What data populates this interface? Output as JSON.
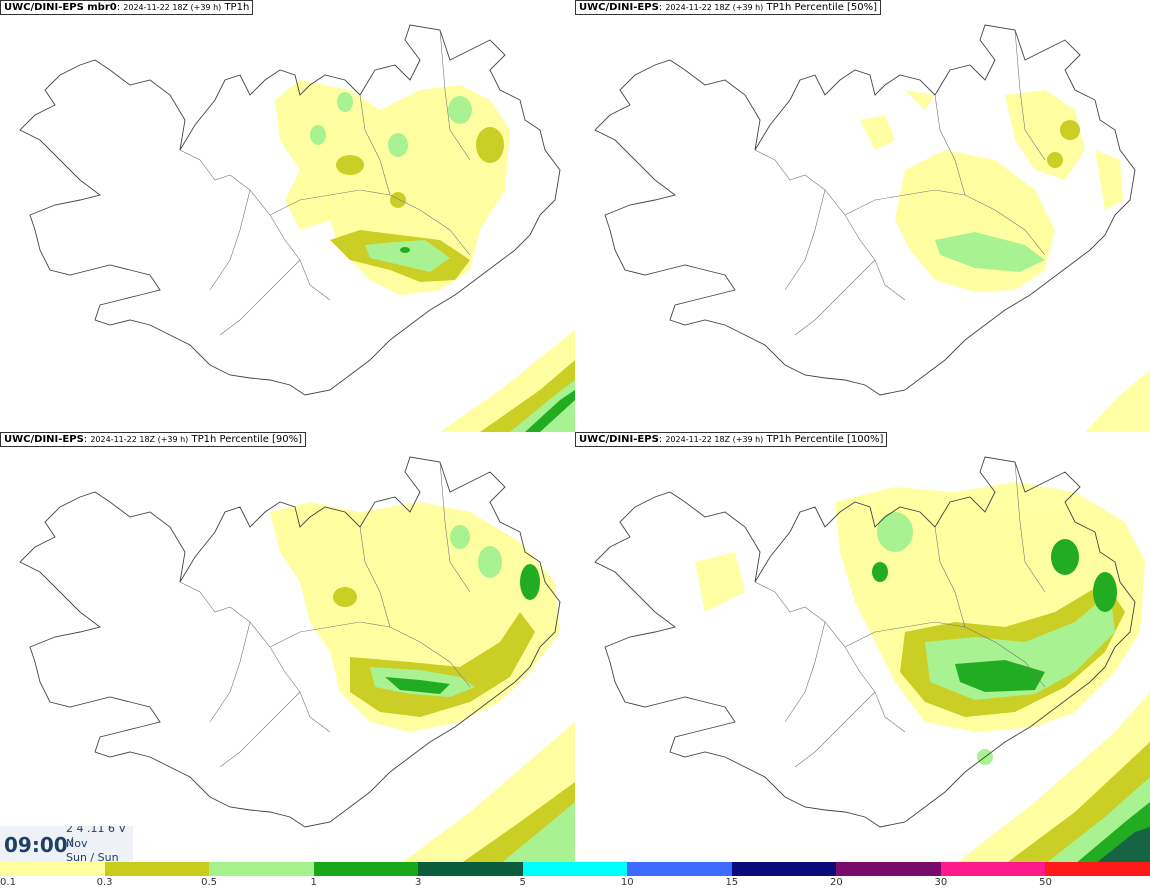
{
  "panels": [
    {
      "model": "UWC/DINI-EPS mbr0",
      "sep": ": ",
      "date": "2024-11-22 18Z (+39 h)",
      "field": "TP1h"
    },
    {
      "model": "UWC/DINI-EPS",
      "sep": ": ",
      "date": "2024-11-22 18Z (+39 h)",
      "field": "TP1h Percentile [50%]"
    },
    {
      "model": "UWC/DINI-EPS",
      "sep": ": ",
      "date": "2024-11-22 18Z (+39 h)",
      "field": "TP1h Percentile [90%]"
    },
    {
      "model": "UWC/DINI-EPS",
      "sep": ": ",
      "date": "2024-11-22 18Z (+39 h)",
      "field": "TP1h Percentile [100%]"
    }
  ],
  "valid_time": {
    "time": "09:00",
    "line1": "2 4 .11 6 V ./",
    "line2": "Nov",
    "line3": "Sun / Sun"
  },
  "legend": {
    "colors": [
      "#ffff9e",
      "#c8cc1a",
      "#a5f28c",
      "#17a817",
      "#0b5c3c",
      "#00ffff",
      "#3d6bff",
      "#0a0a7a",
      "#7a0a6b",
      "#ff1a8c",
      "#ff1a1a"
    ],
    "ticks": [
      "0.1",
      "0.3",
      "0.5",
      "1",
      "3",
      "5",
      "10",
      "15",
      "20",
      "30",
      "50"
    ]
  }
}
